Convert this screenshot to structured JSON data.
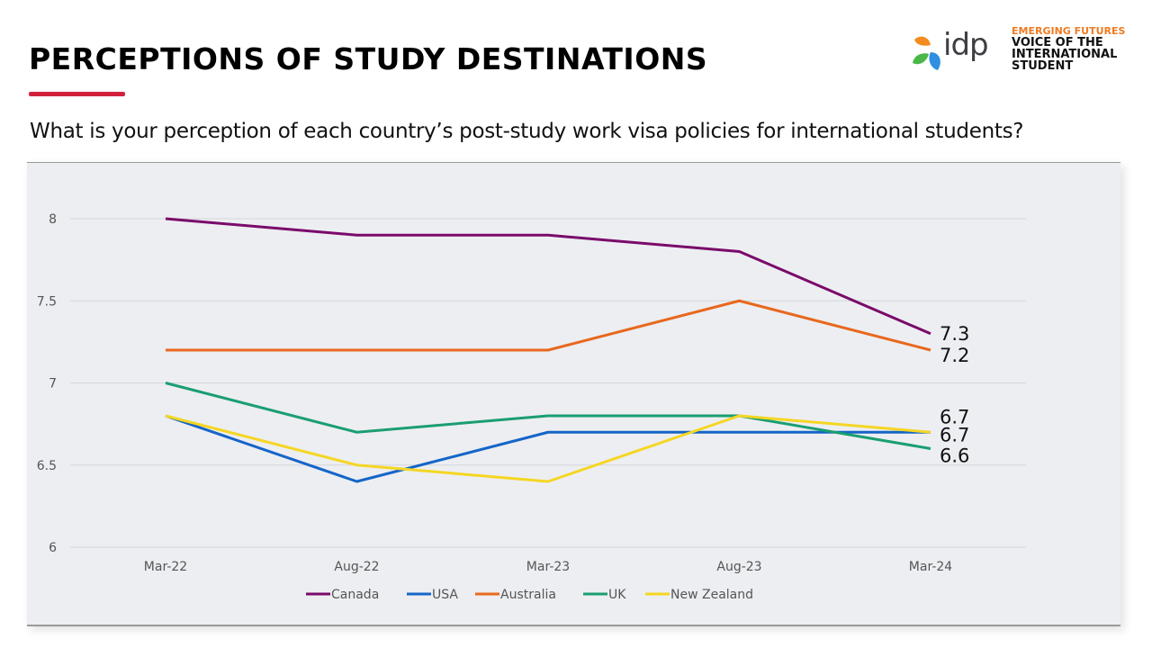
{
  "header": {
    "title": "PERCEPTIONS OF STUDY DESTINATIONS",
    "subtitle": "What is your perception of each country’s post-study work visa policies for international students?",
    "accent_color": "#d3213d"
  },
  "logo": {
    "brand": "idp",
    "tagline": "EMERGING FUTURES",
    "line1": "VOICE OF THE",
    "line2": "INTERNATIONAL",
    "line3": "STUDENT",
    "tagline_color": "#f07b22"
  },
  "chart_data": {
    "type": "line",
    "title": "",
    "xlabel": "",
    "ylabel": "",
    "categories": [
      "Mar-22",
      "Aug-22",
      "Mar-23",
      "Aug-23",
      "Mar-24"
    ],
    "ylim": [
      6,
      8
    ],
    "yticks": [
      6,
      6.5,
      7,
      7.5,
      8
    ],
    "ytick_labels": [
      "6",
      "6.5",
      "7",
      "7.5",
      "8"
    ],
    "grid": true,
    "legend_position": "bottom",
    "series": [
      {
        "name": "Canada",
        "color": "#7a0a6a",
        "values": [
          8,
          7.9,
          7.9,
          7.8,
          7.3
        ],
        "end_label": "7.3"
      },
      {
        "name": "USA",
        "color": "#1565c8",
        "values": [
          6.8,
          6.4,
          6.7,
          6.7,
          6.7
        ],
        "end_label": "6.7"
      },
      {
        "name": "Australia",
        "color": "#e8681e",
        "values": [
          7.2,
          7.2,
          7.2,
          7.5,
          7.2
        ],
        "end_label": "7.2"
      },
      {
        "name": "UK",
        "color": "#1a9e72",
        "values": [
          7,
          6.7,
          6.8,
          6.8,
          6.6
        ],
        "end_label": "6.6"
      },
      {
        "name": "New Zealand",
        "color": "#f5d623",
        "values": [
          6.8,
          6.5,
          6.4,
          6.8,
          6.7
        ],
        "end_label": "6.7"
      }
    ]
  }
}
